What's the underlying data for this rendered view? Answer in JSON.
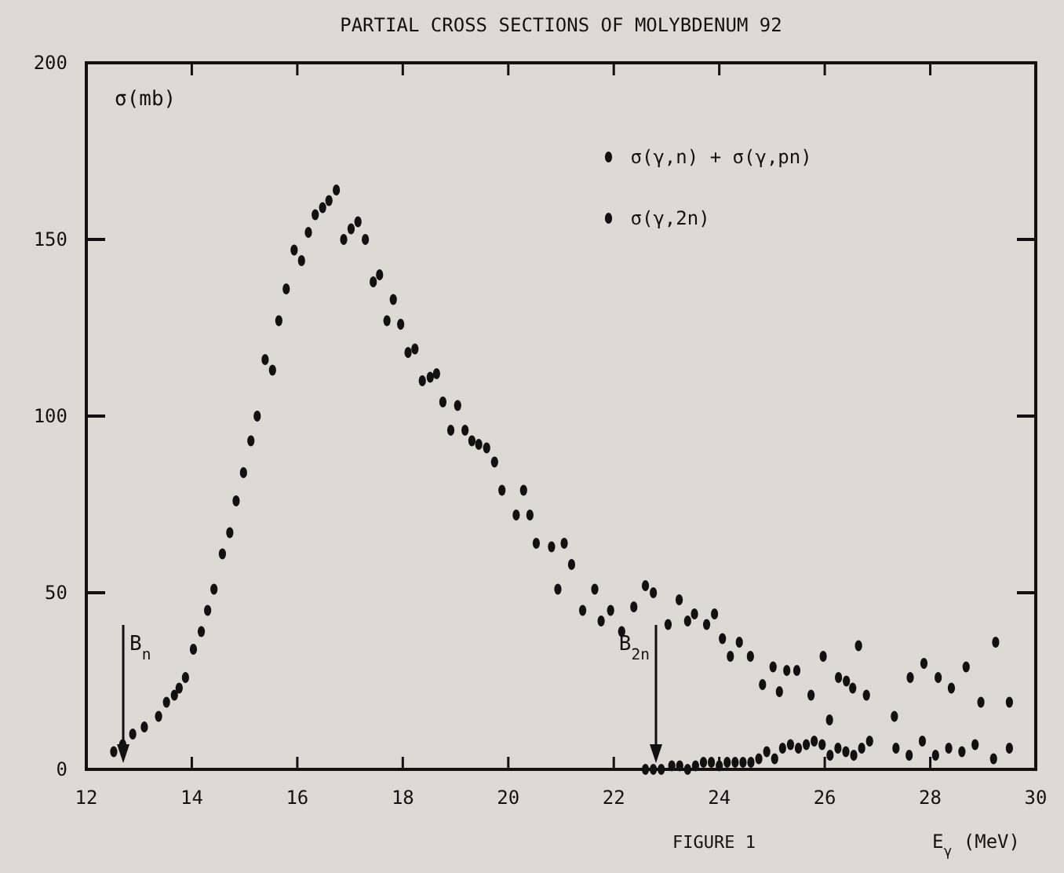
{
  "chart_data": {
    "type": "scatter",
    "title": "PARTIAL CROSS SECTIONS OF MOLYBDENUM 92",
    "xlabel": "E$_{γ}$ (MeV)",
    "ylabel": "σ(mb)",
    "xlim": [
      12,
      30
    ],
    "xticks": [
      12,
      14,
      16,
      18,
      20,
      22,
      24,
      26,
      28,
      30
    ],
    "ylim": [
      0,
      200
    ],
    "yticks": [
      0,
      50,
      100,
      150,
      200
    ],
    "grid": false,
    "legend": "top right",
    "marker": "circle",
    "annotations": [
      "FIGURE 1"
    ],
    "ref_lines": [
      {
        "axis": "x",
        "value": 12.7,
        "label": "B$_{n}$"
      },
      {
        "axis": "x",
        "value": 22.8,
        "label": "B$_{2n}$"
      }
    ],
    "series": [
      {
        "name": "σ(γ,n) + σ(γ,pn)",
        "color": "#111111",
        "x": [
          12.52,
          12.69,
          12.88,
          13.1,
          13.37,
          13.52,
          13.67,
          13.76,
          13.88,
          14.03,
          14.18,
          14.3,
          14.42,
          14.58,
          14.72,
          14.84,
          14.98,
          15.12,
          15.24,
          15.39,
          15.53,
          15.65,
          15.79,
          15.94,
          16.08,
          16.21,
          16.34,
          16.48,
          16.6,
          16.74,
          16.88,
          17.02,
          17.15,
          17.29,
          17.44,
          17.56,
          17.7,
          17.82,
          17.96,
          18.1,
          18.23,
          18.37,
          18.52,
          18.64,
          18.76,
          18.91,
          19.04,
          19.18,
          19.31,
          19.44,
          19.59,
          19.74,
          19.88,
          20.15,
          20.29,
          20.41,
          20.53,
          20.82,
          20.94,
          21.06,
          21.2,
          21.41,
          21.64,
          21.76,
          21.94,
          22.15,
          22.38,
          22.6,
          22.75,
          23.03,
          23.24,
          23.4,
          23.53,
          23.76,
          23.91,
          24.06,
          24.21,
          24.38,
          24.59,
          24.82,
          25.02,
          25.14,
          25.28,
          25.47,
          25.74,
          25.97,
          26.09,
          26.26,
          26.41,
          26.53,
          26.64,
          26.79,
          27.32,
          27.62,
          27.88,
          28.15,
          28.4,
          28.68,
          28.96,
          29.24,
          29.5
        ],
        "values": [
          5,
          7,
          10,
          12,
          15,
          19,
          21,
          23,
          26,
          34,
          39,
          45,
          51,
          61,
          67,
          76,
          84,
          93,
          100,
          116,
          113,
          127,
          136,
          147,
          144,
          152,
          157,
          159,
          161,
          164,
          150,
          153,
          155,
          150,
          138,
          140,
          127,
          133,
          126,
          118,
          119,
          110,
          111,
          112,
          104,
          96,
          103,
          96,
          93,
          92,
          91,
          87,
          79,
          72,
          79,
          72,
          64,
          63,
          51,
          64,
          58,
          45,
          51,
          42,
          45,
          39,
          46,
          52,
          50,
          41,
          48,
          42,
          44,
          41,
          44,
          37,
          32,
          36,
          32,
          24,
          29,
          22,
          28,
          28,
          21,
          32,
          14,
          26,
          25,
          23,
          35,
          21,
          15,
          26,
          30,
          26,
          23,
          29,
          19,
          36,
          19
        ]
      },
      {
        "name": "σ(γ,2n)",
        "color": "#111111",
        "x": [
          22.6,
          22.75,
          22.9,
          23.1,
          23.25,
          23.4,
          23.55,
          23.7,
          23.85,
          24.0,
          24.15,
          24.3,
          24.45,
          24.6,
          24.75,
          24.9,
          25.05,
          25.2,
          25.35,
          25.5,
          25.65,
          25.8,
          25.95,
          26.1,
          26.25,
          26.4,
          26.55,
          26.7,
          26.85,
          27.35,
          27.6,
          27.85,
          28.1,
          28.35,
          28.6,
          28.85,
          29.2,
          29.5
        ],
        "values": [
          0,
          0,
          0,
          1,
          1,
          0,
          1,
          2,
          2,
          1,
          2,
          2,
          2,
          2,
          3,
          5,
          3,
          6,
          7,
          6,
          7,
          8,
          7,
          4,
          6,
          5,
          4,
          6,
          8,
          6,
          4,
          8,
          4,
          6,
          5,
          7,
          3,
          6
        ]
      }
    ]
  }
}
